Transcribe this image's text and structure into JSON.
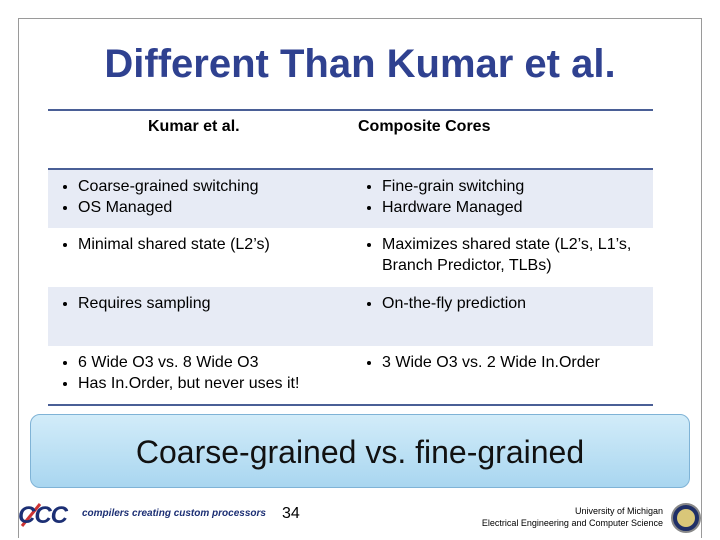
{
  "title": "Different Than Kumar et al.",
  "table": {
    "header": [
      "Kumar et al.",
      "Composite Cores"
    ],
    "rows": [
      [
        [
          "Coarse-grained switching",
          "OS Managed"
        ],
        [
          "Fine-grain switching",
          "Hardware Managed"
        ]
      ],
      [
        [
          "Minimal shared state (L2’s)"
        ],
        [
          "Maximizes shared state (L2’s, L1’s, Branch Predictor, TLBs)"
        ]
      ],
      [
        [
          "Requires sampling"
        ],
        [
          "On-the-fly prediction"
        ]
      ],
      [
        [
          "6 Wide O3 vs. 8 Wide O3",
          "Has In.Order, but never uses it!"
        ],
        [
          "3 Wide O3 vs. 2 Wide In.Order"
        ]
      ]
    ]
  },
  "callout": "Coarse-grained vs. fine-grained",
  "footer": {
    "logo": "CCC",
    "tagline": "compilers creating custom processors",
    "page_number": "34",
    "university": "University of Michigan",
    "department": "Electrical Engineering and Computer Science"
  }
}
